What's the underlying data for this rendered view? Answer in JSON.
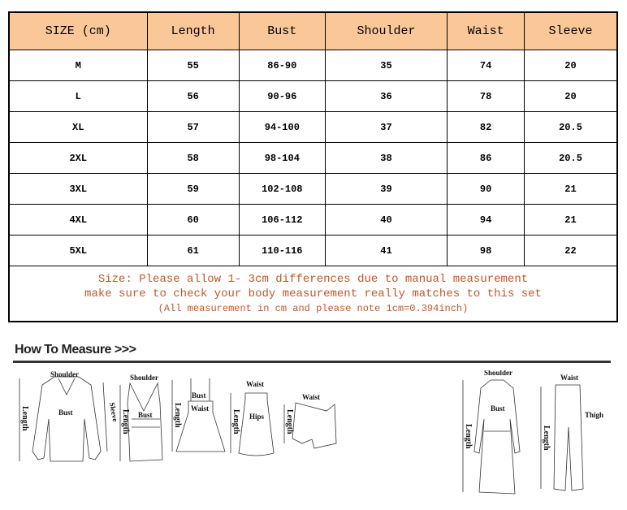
{
  "table": {
    "headers": [
      "SIZE (cm)",
      "Length",
      "Bust",
      "Shoulder",
      "Waist",
      "Sleeve"
    ],
    "header_color": "#fac898",
    "rows": [
      [
        "M",
        "55",
        "86-90",
        "35",
        "74",
        "20"
      ],
      [
        "L",
        "56",
        "90-96",
        "36",
        "78",
        "20"
      ],
      [
        "XL",
        "57",
        "94-100",
        "37",
        "82",
        "20.5"
      ],
      [
        "2XL",
        "58",
        "98-104",
        "38",
        "86",
        "20.5"
      ],
      [
        "3XL",
        "59",
        "102-108",
        "39",
        "90",
        "21"
      ],
      [
        "4XL",
        "60",
        "106-112",
        "40",
        "94",
        "21"
      ],
      [
        "5XL",
        "61",
        "110-116",
        "41",
        "98",
        "22"
      ]
    ],
    "note": {
      "line1": "Size: Please allow 1- 3cm differences due to manual measurement",
      "line2": "make sure to check your body measurement really matches to this set",
      "line3": "(All measurement in cm and please note 1cm=0.394inch)",
      "color": "#c0582a"
    }
  },
  "how_to_measure": {
    "title": "How To Measure >>>",
    "labels": {
      "shoulder": "Shoulder",
      "length": "Length",
      "bust": "Bust",
      "sleeve": "Sleeve",
      "waist": "Waist",
      "hips": "Hips",
      "thigh": "Thigh"
    }
  }
}
